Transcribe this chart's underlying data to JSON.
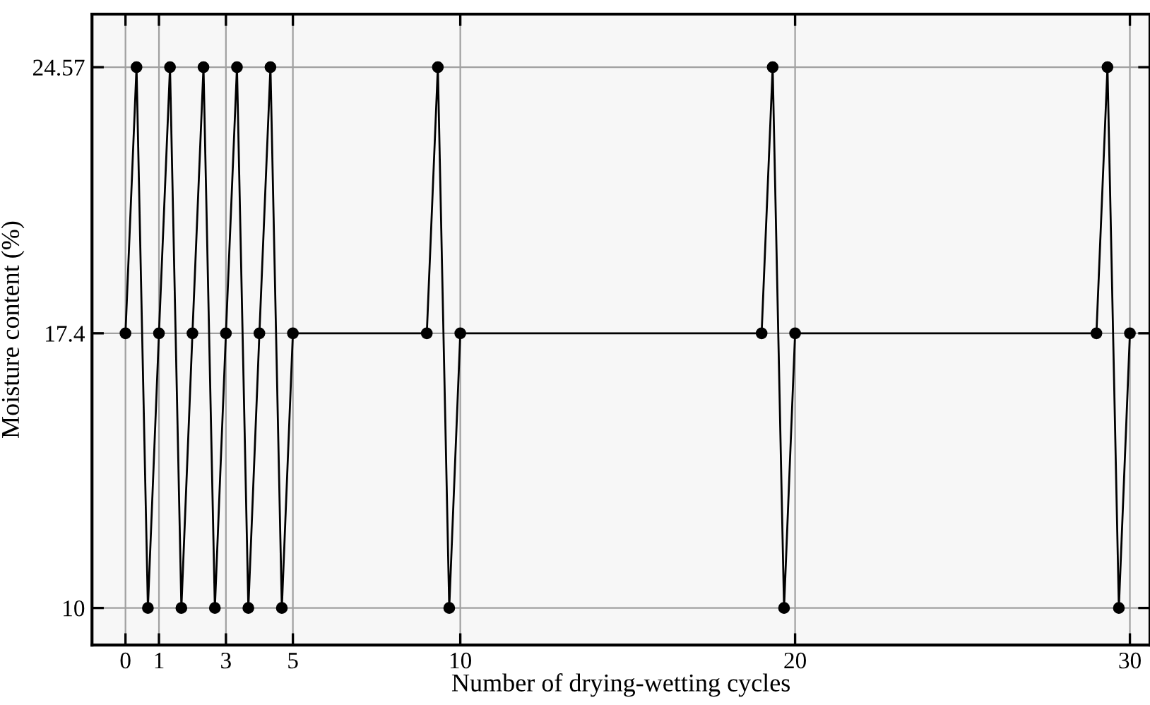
{
  "chart_data": {
    "type": "line",
    "xlabel": "Number of drying-wetting cycles",
    "ylabel": "Moisture content (%)",
    "x": [
      0,
      0.33,
      0.67,
      1,
      1.33,
      1.67,
      2,
      2.33,
      2.67,
      3,
      3.33,
      3.67,
      4,
      4.33,
      4.67,
      5,
      9,
      9.33,
      9.67,
      10,
      19,
      19.33,
      19.67,
      20,
      29,
      29.33,
      29.67,
      30
    ],
    "values": [
      17.4,
      24.57,
      10,
      17.4,
      24.57,
      10,
      17.4,
      24.57,
      10,
      17.4,
      24.57,
      10,
      17.4,
      24.57,
      10,
      17.4,
      17.4,
      24.57,
      10,
      17.4,
      17.4,
      24.57,
      10,
      17.4,
      17.4,
      24.57,
      10,
      17.4
    ],
    "color": "#000000",
    "marker": "circle",
    "line_style": "solid",
    "xlim": [
      -1,
      30.6
    ],
    "xticks": [
      0,
      1,
      3,
      5,
      10,
      20,
      30
    ],
    "ylim": [
      9,
      26
    ],
    "yticks": [
      10,
      17.4,
      24.57
    ],
    "grid": true
  }
}
